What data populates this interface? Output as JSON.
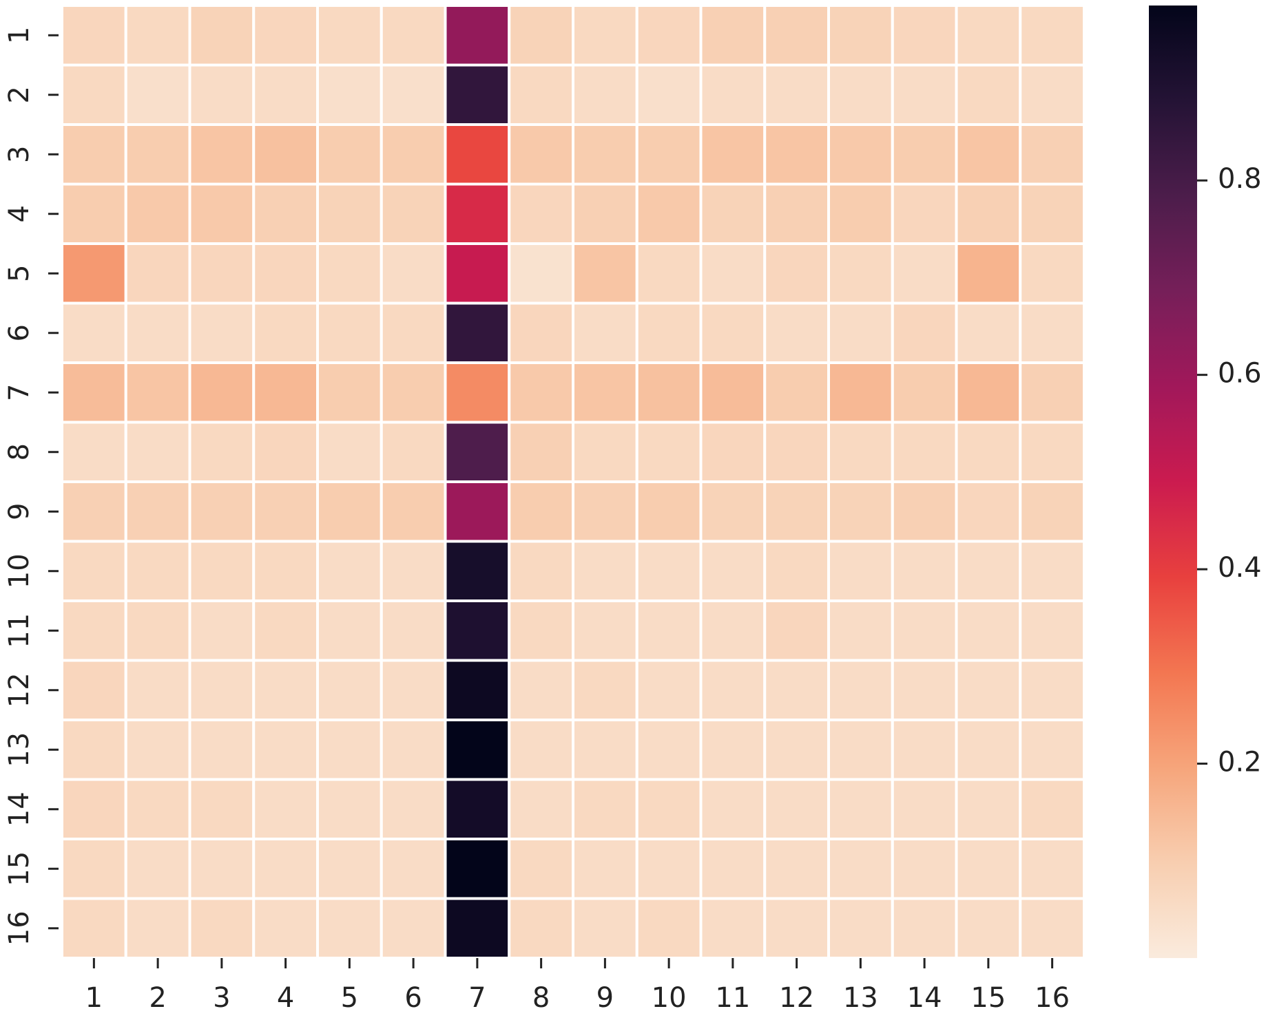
{
  "chart_data": {
    "type": "heatmap",
    "colormap": "rocket_r",
    "x_categories": [
      "1",
      "2",
      "3",
      "4",
      "5",
      "6",
      "7",
      "8",
      "9",
      "10",
      "11",
      "12",
      "13",
      "14",
      "15",
      "16"
    ],
    "y_categories": [
      "1",
      "2",
      "3",
      "4",
      "5",
      "6",
      "7",
      "8",
      "9",
      "10",
      "11",
      "12",
      "13",
      "14",
      "15",
      "16"
    ],
    "values": [
      [
        0.07,
        0.06,
        0.08,
        0.07,
        0.06,
        0.06,
        0.62,
        0.08,
        0.06,
        0.07,
        0.09,
        0.09,
        0.08,
        0.07,
        0.06,
        0.06
      ],
      [
        0.06,
        0.04,
        0.05,
        0.05,
        0.04,
        0.04,
        0.85,
        0.06,
        0.05,
        0.04,
        0.05,
        0.05,
        0.05,
        0.05,
        0.06,
        0.05
      ],
      [
        0.1,
        0.1,
        0.12,
        0.13,
        0.1,
        0.1,
        0.38,
        0.11,
        0.1,
        0.1,
        0.12,
        0.12,
        0.11,
        0.1,
        0.12,
        0.09
      ],
      [
        0.1,
        0.11,
        0.11,
        0.09,
        0.08,
        0.08,
        0.45,
        0.07,
        0.09,
        0.11,
        0.08,
        0.09,
        0.1,
        0.07,
        0.09,
        0.08
      ],
      [
        0.22,
        0.07,
        0.07,
        0.07,
        0.06,
        0.05,
        0.5,
        0.03,
        0.12,
        0.06,
        0.05,
        0.07,
        0.06,
        0.05,
        0.16,
        0.06
      ],
      [
        0.05,
        0.05,
        0.05,
        0.06,
        0.06,
        0.06,
        0.85,
        0.07,
        0.05,
        0.06,
        0.06,
        0.05,
        0.05,
        0.07,
        0.05,
        0.05
      ],
      [
        0.14,
        0.12,
        0.15,
        0.15,
        0.1,
        0.1,
        0.25,
        0.11,
        0.12,
        0.13,
        0.14,
        0.1,
        0.15,
        0.1,
        0.15,
        0.09
      ],
      [
        0.05,
        0.05,
        0.06,
        0.07,
        0.05,
        0.06,
        0.78,
        0.09,
        0.06,
        0.06,
        0.07,
        0.07,
        0.06,
        0.06,
        0.06,
        0.06
      ],
      [
        0.09,
        0.09,
        0.09,
        0.09,
        0.1,
        0.1,
        0.6,
        0.1,
        0.09,
        0.1,
        0.08,
        0.08,
        0.08,
        0.09,
        0.07,
        0.08
      ],
      [
        0.06,
        0.06,
        0.06,
        0.06,
        0.05,
        0.05,
        0.92,
        0.06,
        0.05,
        0.05,
        0.05,
        0.06,
        0.05,
        0.05,
        0.05,
        0.05
      ],
      [
        0.06,
        0.06,
        0.05,
        0.06,
        0.05,
        0.05,
        0.9,
        0.06,
        0.05,
        0.05,
        0.05,
        0.07,
        0.05,
        0.05,
        0.05,
        0.05
      ],
      [
        0.07,
        0.05,
        0.05,
        0.05,
        0.05,
        0.05,
        0.95,
        0.05,
        0.06,
        0.05,
        0.05,
        0.05,
        0.05,
        0.05,
        0.05,
        0.05
      ],
      [
        0.06,
        0.05,
        0.05,
        0.05,
        0.05,
        0.05,
        0.98,
        0.05,
        0.05,
        0.05,
        0.05,
        0.05,
        0.05,
        0.05,
        0.05,
        0.05
      ],
      [
        0.07,
        0.06,
        0.06,
        0.05,
        0.05,
        0.05,
        0.93,
        0.05,
        0.06,
        0.06,
        0.05,
        0.05,
        0.05,
        0.05,
        0.05,
        0.06
      ],
      [
        0.06,
        0.05,
        0.05,
        0.05,
        0.05,
        0.05,
        0.98,
        0.06,
        0.05,
        0.05,
        0.05,
        0.05,
        0.05,
        0.05,
        0.05,
        0.05
      ],
      [
        0.06,
        0.05,
        0.06,
        0.05,
        0.05,
        0.05,
        0.95,
        0.06,
        0.05,
        0.06,
        0.05,
        0.05,
        0.05,
        0.05,
        0.05,
        0.05
      ]
    ],
    "clim": [
      0,
      0.98
    ],
    "cticks": [
      0.2,
      0.4,
      0.6,
      0.8
    ]
  }
}
